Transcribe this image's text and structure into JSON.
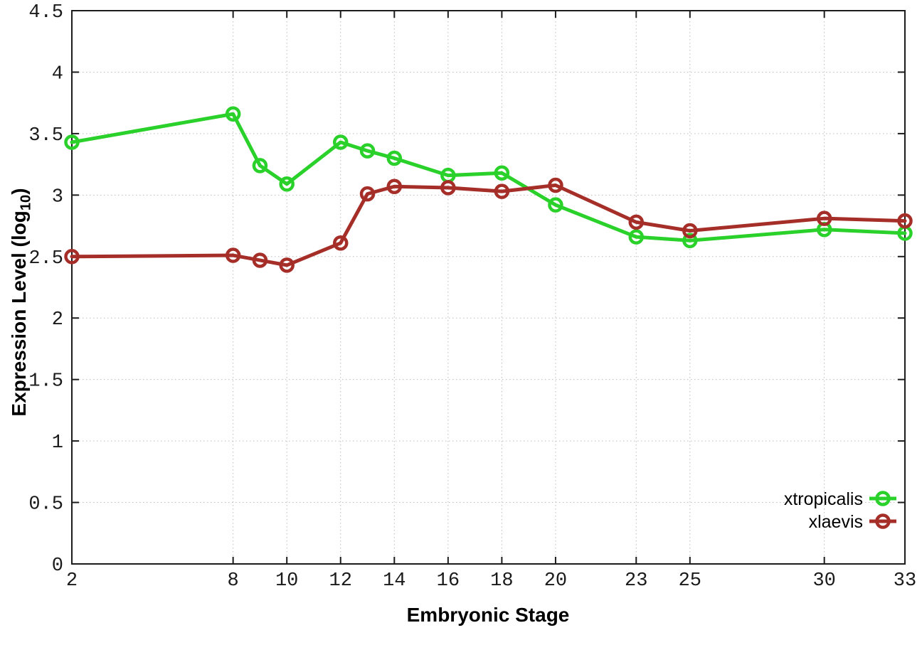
{
  "chart_data": {
    "type": "line",
    "title": "",
    "xlabel": "Embryonic Stage",
    "ylabel": "Expression Level (log10)",
    "ylabel_parts": {
      "prefix": "Expression Level (log",
      "sub": "10",
      "suffix": ")"
    },
    "x": [
      2,
      8,
      9,
      10,
      12,
      13,
      14,
      16,
      18,
      20,
      23,
      25,
      30,
      33
    ],
    "series": [
      {
        "name": "xtropicalis",
        "color": "#2bd12b",
        "values": [
          3.43,
          3.66,
          3.24,
          3.09,
          3.43,
          3.36,
          3.3,
          3.16,
          3.18,
          2.92,
          2.66,
          2.63,
          2.72,
          2.69
        ]
      },
      {
        "name": "xlaevis",
        "color": "#a52e28",
        "values": [
          2.5,
          2.51,
          2.47,
          2.43,
          2.61,
          3.01,
          3.07,
          3.06,
          3.03,
          3.08,
          2.78,
          2.71,
          2.81,
          2.79
        ]
      }
    ],
    "xticks": [
      2,
      8,
      10,
      12,
      14,
      16,
      18,
      20,
      23,
      25,
      30,
      33
    ],
    "yticks": [
      0,
      0.5,
      1,
      1.5,
      2,
      2.5,
      3,
      3.5,
      4,
      4.5
    ],
    "ytick_labels": [
      "0",
      "0.5",
      "1",
      "1.5",
      "2",
      "2.5",
      "3",
      "3.5",
      "4",
      "4.5"
    ],
    "xlim": [
      2,
      33
    ],
    "ylim": [
      0,
      4.5
    ],
    "grid": true,
    "legend_position": "bottom-right",
    "background": "#ffffff",
    "grid_color": "#bdbdbd",
    "axis_color": "#1c1c1c",
    "tick_label_color": "#1a1a1a"
  }
}
